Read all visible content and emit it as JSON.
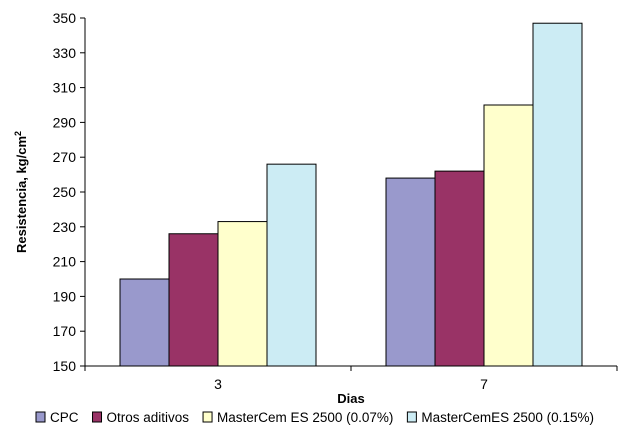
{
  "chart_data": {
    "type": "bar",
    "categories": [
      "3",
      "7"
    ],
    "series": [
      {
        "name": "CPC",
        "color": "#9999cc",
        "values": [
          200,
          258
        ]
      },
      {
        "name": "Otros aditivos",
        "color": "#993366",
        "values": [
          226,
          262
        ]
      },
      {
        "name": "MasterCem ES 2500 (0.07%)",
        "color": "#ffffcc",
        "values": [
          233,
          300
        ]
      },
      {
        "name": "MasterCemES 2500 (0.15%)",
        "color": "#ccecf4",
        "values": [
          266,
          347
        ]
      }
    ],
    "xlabel": "Dias",
    "ylabel_main": "Resistencia,  kg/cm",
    "ylabel_sup": "2",
    "ylim": [
      150,
      350
    ],
    "yticks": [
      "150",
      "170",
      "190",
      "210",
      "230",
      "250",
      "270",
      "290",
      "310",
      "330",
      "350"
    ],
    "grid": false,
    "legend_position": "bottom"
  }
}
